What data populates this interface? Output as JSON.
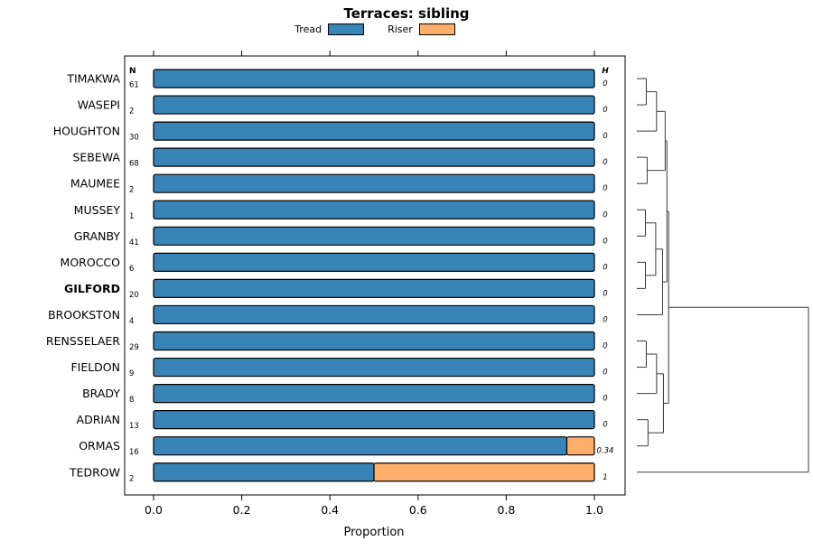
{
  "chart_data": {
    "type": "bar",
    "variant": "horizontal-stacked-proportion-with-dendrogram",
    "title": "Terraces: sibling",
    "legend": [
      {
        "label": "Tread",
        "color": "#3984b6"
      },
      {
        "label": "Riser",
        "color": "#fdae6b"
      }
    ],
    "colors": {
      "tread": "#3984b6",
      "riser": "#fdae6b",
      "dendrogram": "#3a3a3a"
    },
    "columns": {
      "n_header": "N",
      "h_header": "H"
    },
    "x_axis": {
      "label": "Proportion",
      "ticks": [
        0,
        0.2,
        0.4,
        0.6,
        0.8,
        1
      ],
      "range": [
        0,
        1
      ]
    },
    "rows": [
      {
        "name": "TIMAKWA",
        "n": 61,
        "tread": 1,
        "riser": 0,
        "h": "0",
        "bold": false
      },
      {
        "name": "WASEPI",
        "n": 2,
        "tread": 1,
        "riser": 0,
        "h": "0",
        "bold": false
      },
      {
        "name": "HOUGHTON",
        "n": 30,
        "tread": 1,
        "riser": 0,
        "h": "0",
        "bold": false
      },
      {
        "name": "SEBEWA",
        "n": 68,
        "tread": 1,
        "riser": 0,
        "h": "0",
        "bold": false
      },
      {
        "name": "MAUMEE",
        "n": 2,
        "tread": 1,
        "riser": 0,
        "h": "0",
        "bold": false
      },
      {
        "name": "MUSSEY",
        "n": 1,
        "tread": 1,
        "riser": 0,
        "h": "0",
        "bold": false
      },
      {
        "name": "GRANBY",
        "n": 41,
        "tread": 1,
        "riser": 0,
        "h": "0",
        "bold": false
      },
      {
        "name": "MOROCCO",
        "n": 6,
        "tread": 1,
        "riser": 0,
        "h": "0",
        "bold": false
      },
      {
        "name": "GILFORD",
        "n": 20,
        "tread": 1,
        "riser": 0,
        "h": "0",
        "bold": true
      },
      {
        "name": "BROOKSTON",
        "n": 4,
        "tread": 1,
        "riser": 0,
        "h": "0",
        "bold": false
      },
      {
        "name": "RENSSELAER",
        "n": 29,
        "tread": 1,
        "riser": 0,
        "h": "0",
        "bold": false
      },
      {
        "name": "FIELDON",
        "n": 9,
        "tread": 1,
        "riser": 0,
        "h": "0",
        "bold": false
      },
      {
        "name": "BRADY",
        "n": 8,
        "tread": 1,
        "riser": 0,
        "h": "0",
        "bold": false
      },
      {
        "name": "ADRIAN",
        "n": 13,
        "tread": 1,
        "riser": 0,
        "h": "0",
        "bold": false
      },
      {
        "name": "ORMAS",
        "n": 16,
        "tread": 0.9375,
        "riser": 0.0625,
        "h": "0.34",
        "bold": false
      },
      {
        "name": "TEDROW",
        "n": 2,
        "tread": 0.5,
        "riser": 0.5,
        "h": "1",
        "bold": false
      }
    ],
    "dendrogram": {
      "height": 1,
      "children": [
        {
          "height": 0.185,
          "children": [
            {
              "height": 0.175,
              "children": [
                {
                  "height": 0.165,
                  "children": [
                    {
                      "height": 0.115,
                      "children": [
                        {
                          "height": 0.055,
                          "children": [
                            {
                              "leaf": "TIMAKWA"
                            },
                            {
                              "leaf": "WASEPI"
                            }
                          ]
                        },
                        {
                          "leaf": "HOUGHTON"
                        }
                      ]
                    },
                    {
                      "height": 0.06,
                      "children": [
                        {
                          "leaf": "SEBEWA"
                        },
                        {
                          "leaf": "MAUMEE"
                        }
                      ]
                    }
                  ]
                },
                {
                  "height": 0.15,
                  "children": [
                    {
                      "height": 0.11,
                      "children": [
                        {
                          "height": 0.05,
                          "children": [
                            {
                              "leaf": "MUSSEY"
                            },
                            {
                              "leaf": "GRANBY"
                            }
                          ]
                        },
                        {
                          "height": 0.05,
                          "children": [
                            {
                              "leaf": "MOROCCO"
                            },
                            {
                              "leaf": "GILFORD"
                            }
                          ]
                        }
                      ]
                    },
                    {
                      "leaf": "BROOKSTON"
                    }
                  ]
                }
              ]
            },
            {
              "height": 0.155,
              "children": [
                {
                  "height": 0.115,
                  "children": [
                    {
                      "height": 0.055,
                      "children": [
                        {
                          "leaf": "RENSSELAER"
                        },
                        {
                          "leaf": "FIELDON"
                        }
                      ]
                    },
                    {
                      "leaf": "BRADY"
                    }
                  ]
                },
                {
                  "height": 0.065,
                  "children": [
                    {
                      "leaf": "ADRIAN"
                    },
                    {
                      "leaf": "ORMAS"
                    }
                  ]
                }
              ]
            }
          ]
        },
        {
          "leaf": "TEDROW"
        }
      ]
    }
  }
}
